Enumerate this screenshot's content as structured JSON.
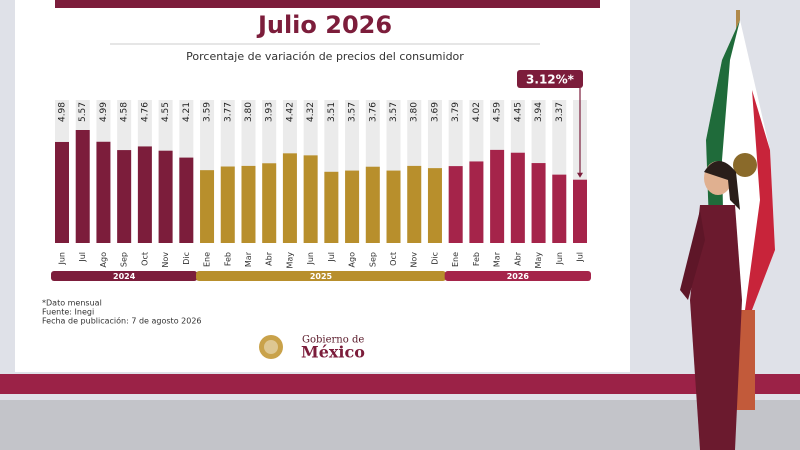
{
  "chart_data": {
    "type": "bar",
    "title": "Julio 2026",
    "subtitle": "Porcentaje de variación de precios del consumidor",
    "groups": [
      {
        "name": "2024",
        "color": "#7c1d3b",
        "categories": [
          "Jun",
          "Jul",
          "Ago",
          "Sep",
          "Oct",
          "Nov",
          "Dic"
        ],
        "values": [
          4.98,
          5.57,
          4.99,
          4.58,
          4.76,
          4.55,
          4.21
        ],
        "value_labels": [
          "4.98",
          "5.57",
          "4.99",
          "4.58",
          "4.76",
          "4.55",
          "4.21"
        ]
      },
      {
        "name": "2025",
        "color": "#b88f2c",
        "categories": [
          "Ene",
          "Feb",
          "Mar",
          "Abr",
          "May",
          "Jun",
          "Jul",
          "Ago",
          "Sep",
          "Oct",
          "Nov",
          "Dic"
        ],
        "values": [
          3.59,
          3.77,
          3.8,
          3.93,
          4.42,
          4.32,
          3.51,
          3.57,
          3.76,
          3.57,
          3.8,
          3.69
        ],
        "value_labels": [
          "3.59",
          "3.77",
          "3.80",
          "3.93",
          "4.42",
          "4.32",
          "3.51",
          "3.57",
          "3.76",
          "3.57",
          "3.80",
          "3.69"
        ]
      },
      {
        "name": "2026",
        "color": "#a5244a",
        "categories": [
          "Ene",
          "Feb",
          "Mar",
          "Abr",
          "May",
          "Jun",
          "Jul"
        ],
        "values": [
          3.79,
          4.02,
          4.59,
          4.45,
          3.94,
          3.37,
          3.12
        ],
        "value_labels": [
          "3.79",
          "4.02",
          "4.59",
          "4.45",
          "3.94",
          "3.37",
          "3.12%*"
        ]
      }
    ],
    "notes": [
      "*Dato mensual",
      "Fuente: Inegi",
      "Fecha de publicación: 7 de agosto 2026"
    ],
    "logo": {
      "line1": "Gobierno de",
      "line2": "México"
    }
  }
}
